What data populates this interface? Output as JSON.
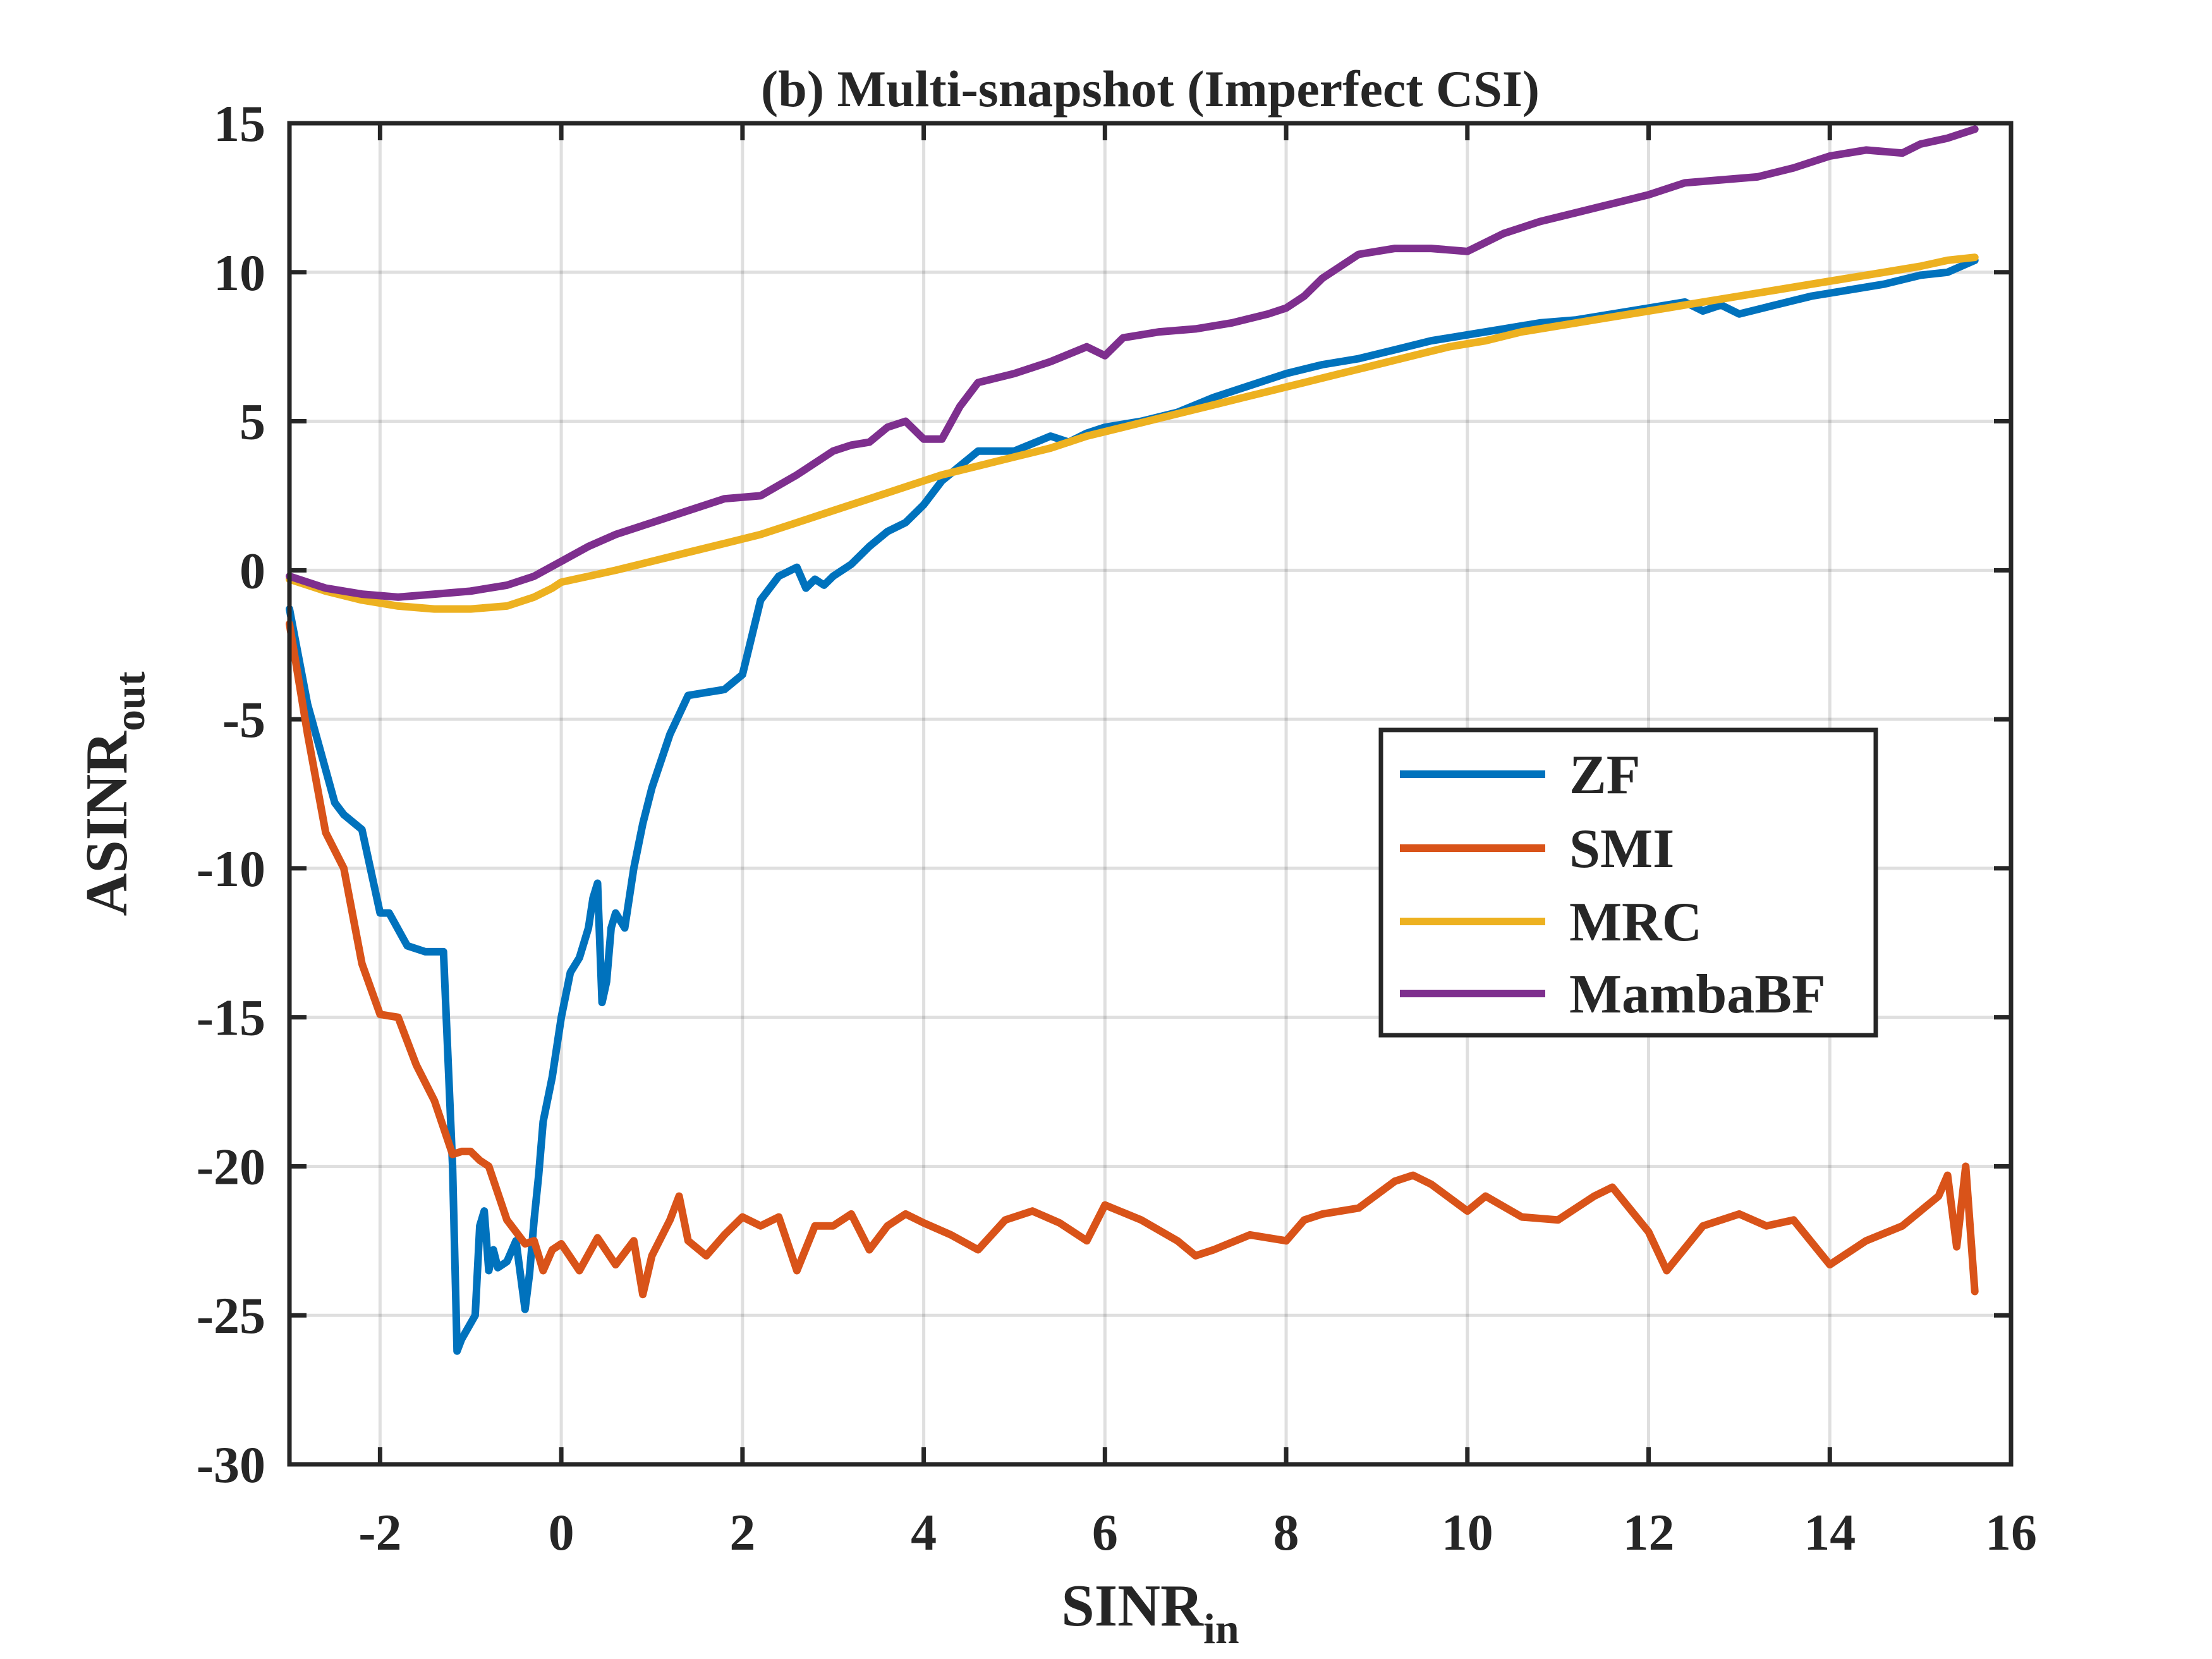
{
  "chart_data": {
    "type": "line",
    "title": "(b) Multi-snapshot (Imperfect CSI)",
    "xlabel": {
      "main": "SINR",
      "sub": "in"
    },
    "ylabel": {
      "main": "ASINR",
      "sub": "out"
    },
    "xlim": [
      -3,
      16
    ],
    "ylim": [
      -30,
      15
    ],
    "xticks": [
      -2,
      0,
      2,
      4,
      6,
      8,
      10,
      12,
      14,
      16
    ],
    "xtick_labels": [
      "-2",
      "0",
      "2",
      "4",
      "6",
      "8",
      "10",
      "12",
      "14",
      "16"
    ],
    "yticks": [
      -30,
      -25,
      -20,
      -15,
      -10,
      -5,
      0,
      5,
      10,
      15
    ],
    "ytick_labels": [
      "-30",
      "-25",
      "-20",
      "-15",
      "-10",
      "-5",
      "0",
      "5",
      "10",
      "15"
    ],
    "grid": true,
    "legend_position": "center-right",
    "series": [
      {
        "name": "ZF",
        "color": "#0072BD",
        "x": [
          -3.0,
          -2.8,
          -2.5,
          -2.4,
          -2.2,
          -2.0,
          -1.9,
          -1.7,
          -1.5,
          -1.3,
          -1.2,
          -1.15,
          -1.1,
          -0.95,
          -0.9,
          -0.85,
          -0.8,
          -0.75,
          -0.7,
          -0.6,
          -0.5,
          -0.4,
          -0.35,
          -0.3,
          -0.25,
          -0.2,
          -0.1,
          0.0,
          0.1,
          0.2,
          0.3,
          0.35,
          0.4,
          0.45,
          0.5,
          0.55,
          0.6,
          0.7,
          0.8,
          0.9,
          1.0,
          1.2,
          1.4,
          1.6,
          1.8,
          2.0,
          2.2,
          2.4,
          2.6,
          2.7,
          2.8,
          2.9,
          3.0,
          3.2,
          3.4,
          3.6,
          3.8,
          4.0,
          4.2,
          4.4,
          4.6,
          5.0,
          5.4,
          5.6,
          5.8,
          6.0,
          6.4,
          6.8,
          7.2,
          7.6,
          8.0,
          8.4,
          8.8,
          9.2,
          9.6,
          10.0,
          10.4,
          10.8,
          11.2,
          11.6,
          12.0,
          12.4,
          12.6,
          12.8,
          13.0,
          13.4,
          13.8,
          14.2,
          14.6,
          15.0,
          15.3,
          15.6
        ],
        "y": [
          -1.3,
          -4.5,
          -7.8,
          -8.2,
          -8.7,
          -11.5,
          -11.5,
          -12.6,
          -12.8,
          -12.8,
          -20.0,
          -26.2,
          -25.8,
          -25.0,
          -22.0,
          -21.5,
          -23.5,
          -22.8,
          -23.4,
          -23.2,
          -22.5,
          -24.8,
          -23.6,
          -21.8,
          -20.3,
          -18.5,
          -17.0,
          -15.0,
          -13.5,
          -13.0,
          -12.0,
          -11.0,
          -10.5,
          -14.5,
          -13.8,
          -12.0,
          -11.5,
          -12.0,
          -10.0,
          -8.5,
          -7.3,
          -5.5,
          -4.2,
          -4.1,
          -4.0,
          -3.5,
          -1.0,
          -0.2,
          0.1,
          -0.6,
          -0.3,
          -0.5,
          -0.2,
          0.2,
          0.8,
          1.3,
          1.6,
          2.2,
          3.0,
          3.5,
          4.0,
          4.0,
          4.5,
          4.3,
          4.6,
          4.8,
          5.0,
          5.3,
          5.8,
          6.2,
          6.6,
          6.9,
          7.1,
          7.4,
          7.7,
          7.9,
          8.1,
          8.3,
          8.4,
          8.6,
          8.8,
          9.0,
          8.7,
          8.9,
          8.6,
          8.9,
          9.2,
          9.4,
          9.6,
          9.9,
          10.0,
          10.4
        ]
      },
      {
        "name": "SMI",
        "color": "#D95319",
        "x": [
          -3.0,
          -2.8,
          -2.6,
          -2.4,
          -2.2,
          -2.0,
          -1.8,
          -1.6,
          -1.4,
          -1.2,
          -1.1,
          -1.0,
          -0.9,
          -0.8,
          -0.6,
          -0.4,
          -0.3,
          -0.25,
          -0.2,
          -0.1,
          0.0,
          0.2,
          0.4,
          0.6,
          0.8,
          0.9,
          1.0,
          1.2,
          1.3,
          1.4,
          1.6,
          1.8,
          2.0,
          2.2,
          2.4,
          2.6,
          2.8,
          3.0,
          3.2,
          3.4,
          3.6,
          3.8,
          4.0,
          4.3,
          4.6,
          4.9,
          5.2,
          5.5,
          5.8,
          6.0,
          6.4,
          6.8,
          7.0,
          7.2,
          7.6,
          8.0,
          8.2,
          8.4,
          8.8,
          9.2,
          9.4,
          9.6,
          10.0,
          10.2,
          10.6,
          11.0,
          11.4,
          11.6,
          12.0,
          12.2,
          12.6,
          13.0,
          13.3,
          13.6,
          14.0,
          14.4,
          14.8,
          15.0,
          15.2,
          15.3,
          15.4,
          15.5,
          15.6
        ],
        "y": [
          -1.8,
          -5.5,
          -8.8,
          -10.0,
          -13.2,
          -14.9,
          -15.0,
          -16.6,
          -17.8,
          -19.6,
          -19.5,
          -19.5,
          -19.8,
          -20.0,
          -21.8,
          -22.6,
          -22.5,
          -23.0,
          -23.5,
          -22.8,
          -22.6,
          -23.5,
          -22.4,
          -23.3,
          -22.5,
          -24.3,
          -23.0,
          -21.8,
          -21.0,
          -22.5,
          -23.0,
          -22.3,
          -21.7,
          -22.0,
          -21.7,
          -23.5,
          -22.0,
          -22.0,
          -21.6,
          -22.8,
          -22.0,
          -21.6,
          -21.9,
          -22.3,
          -22.8,
          -21.8,
          -21.5,
          -21.9,
          -22.5,
          -21.3,
          -21.8,
          -22.5,
          -23.0,
          -22.8,
          -22.3,
          -22.5,
          -21.8,
          -21.6,
          -21.4,
          -20.5,
          -20.3,
          -20.6,
          -21.5,
          -21.0,
          -21.7,
          -21.8,
          -21.0,
          -20.7,
          -22.2,
          -23.5,
          -22.0,
          -21.6,
          -22.0,
          -21.8,
          -23.3,
          -22.5,
          -22.0,
          -21.5,
          -21.0,
          -20.3,
          -22.7,
          -20.0,
          -24.2
        ]
      },
      {
        "name": "MRC",
        "color": "#EDB120",
        "x": [
          -3.0,
          -2.6,
          -2.2,
          -1.8,
          -1.4,
          -1.0,
          -0.6,
          -0.3,
          -0.1,
          0.0,
          0.3,
          0.6,
          1.0,
          1.4,
          1.8,
          2.2,
          2.6,
          3.0,
          3.4,
          3.8,
          4.2,
          4.6,
          5.0,
          5.4,
          5.8,
          6.2,
          6.6,
          7.0,
          7.4,
          7.8,
          8.2,
          8.6,
          9.0,
          9.4,
          9.8,
          10.2,
          10.6,
          11.0,
          11.4,
          11.8,
          12.2,
          12.6,
          13.0,
          13.4,
          13.8,
          14.2,
          14.6,
          15.0,
          15.3,
          15.6
        ],
        "y": [
          -0.3,
          -0.7,
          -1.0,
          -1.2,
          -1.3,
          -1.3,
          -1.2,
          -0.9,
          -0.6,
          -0.4,
          -0.2,
          0.0,
          0.3,
          0.6,
          0.9,
          1.2,
          1.6,
          2.0,
          2.4,
          2.8,
          3.2,
          3.5,
          3.8,
          4.1,
          4.5,
          4.8,
          5.1,
          5.4,
          5.7,
          6.0,
          6.3,
          6.6,
          6.9,
          7.2,
          7.5,
          7.7,
          8.0,
          8.2,
          8.4,
          8.6,
          8.8,
          9.0,
          9.2,
          9.4,
          9.6,
          9.8,
          10.0,
          10.2,
          10.4,
          10.5
        ]
      },
      {
        "name": "MambaBF",
        "color": "#7E2F8E",
        "x": [
          -3.0,
          -2.6,
          -2.2,
          -1.8,
          -1.4,
          -1.0,
          -0.6,
          -0.3,
          0.0,
          0.3,
          0.6,
          1.0,
          1.4,
          1.8,
          2.2,
          2.6,
          3.0,
          3.2,
          3.4,
          3.6,
          3.8,
          4.0,
          4.2,
          4.4,
          4.6,
          5.0,
          5.4,
          5.8,
          6.0,
          6.2,
          6.6,
          7.0,
          7.4,
          7.8,
          8.0,
          8.2,
          8.4,
          8.8,
          9.2,
          9.6,
          10.0,
          10.4,
          10.8,
          11.2,
          11.6,
          12.0,
          12.4,
          12.8,
          13.2,
          13.6,
          14.0,
          14.4,
          14.8,
          15.0,
          15.3,
          15.6
        ],
        "y": [
          -0.2,
          -0.6,
          -0.8,
          -0.9,
          -0.8,
          -0.7,
          -0.5,
          -0.2,
          0.3,
          0.8,
          1.2,
          1.6,
          2.0,
          2.4,
          2.5,
          3.2,
          4.0,
          4.2,
          4.3,
          4.8,
          5.0,
          4.4,
          4.4,
          5.5,
          6.3,
          6.6,
          7.0,
          7.5,
          7.2,
          7.8,
          8.0,
          8.1,
          8.3,
          8.6,
          8.8,
          9.2,
          9.8,
          10.6,
          10.8,
          10.8,
          10.7,
          11.3,
          11.7,
          12.0,
          12.3,
          12.6,
          13.0,
          13.1,
          13.2,
          13.5,
          13.9,
          14.1,
          14.0,
          14.3,
          14.5,
          14.8
        ]
      }
    ]
  }
}
